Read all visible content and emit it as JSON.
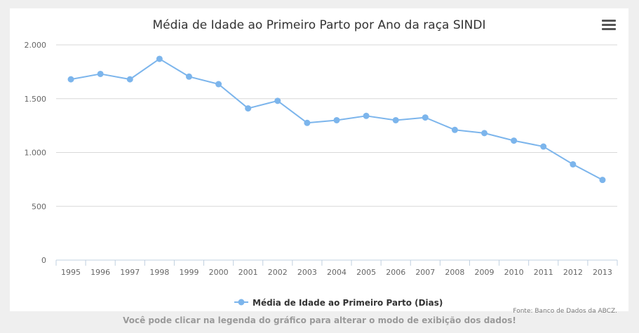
{
  "chart_data": {
    "type": "line",
    "title": "Média de Idade ao Primeiro Parto por Ano da raça SINDI",
    "categories": [
      "1995",
      "1996",
      "1997",
      "1998",
      "1999",
      "2000",
      "2001",
      "2002",
      "2003",
      "2004",
      "2005",
      "2006",
      "2007",
      "2008",
      "2009",
      "2010",
      "2011",
      "2012",
      "2013"
    ],
    "series": [
      {
        "name": "Média de Idade ao Primeiro Parto (Dias)",
        "values": [
          1680,
          1730,
          1680,
          1870,
          1705,
          1635,
          1410,
          1480,
          1275,
          1300,
          1340,
          1300,
          1325,
          1210,
          1180,
          1110,
          1055,
          890,
          745
        ],
        "color": "#7cb5ec"
      }
    ],
    "ylim": [
      0,
      2000
    ],
    "yticks": [
      0,
      500,
      1000,
      1500,
      2000
    ],
    "ytick_labels": [
      "0",
      "500",
      "1.000",
      "1.500",
      "2.000"
    ],
    "grid": true,
    "legend_position": "bottom-center",
    "credits": "Fonte: Banco de Dados da ABCZ."
  },
  "footer_note": "Você pode clicar na legenda do gráfico para alterar o modo de exibição dos dados!",
  "menu_icon": "hamburger-menu-icon",
  "colors": {
    "grid": "#d8d8d8",
    "axis_text": "#666666",
    "title": "#333333",
    "background": "#efefef"
  }
}
